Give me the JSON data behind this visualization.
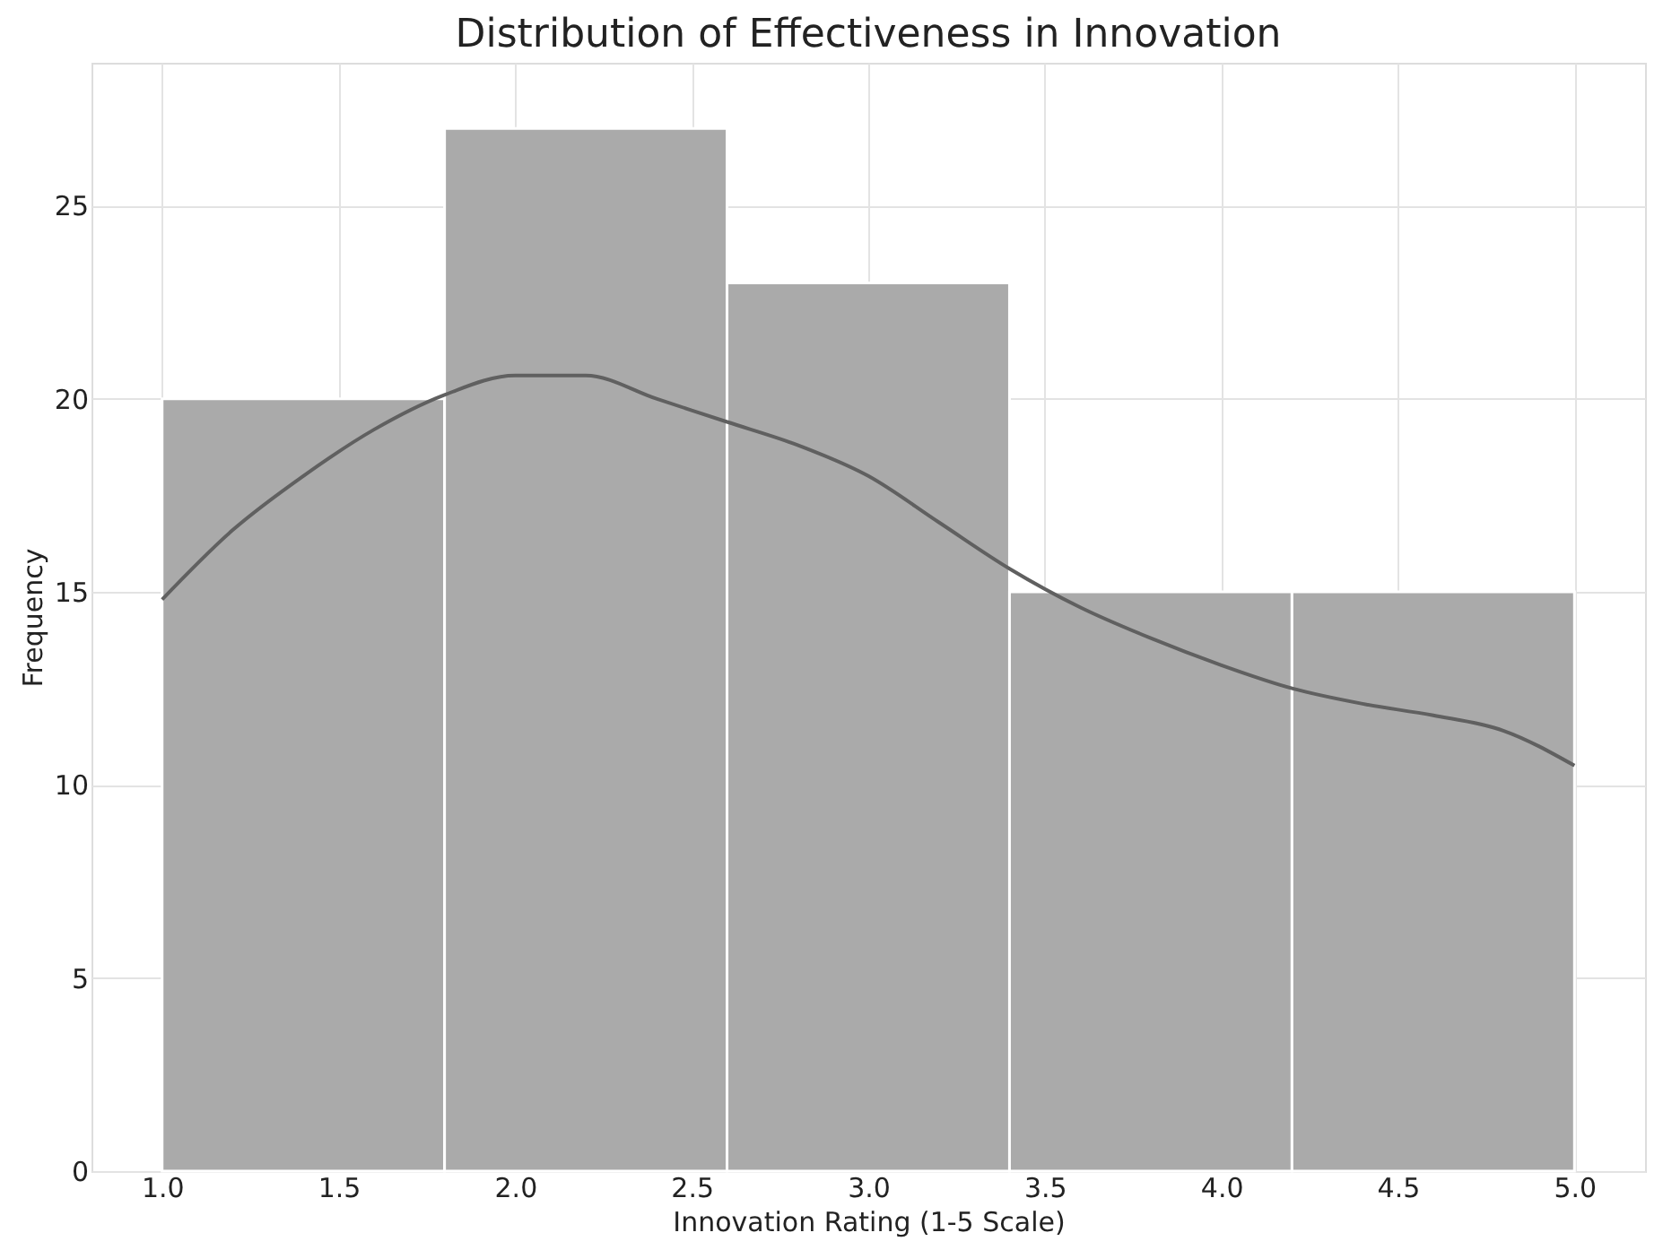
{
  "chart_data": {
    "type": "histogram",
    "title": "Distribution of Effectiveness in Innovation",
    "xlabel": "Innovation Rating (1-5 Scale)",
    "ylabel": "Frequency",
    "bins": [
      1.0,
      1.8,
      2.6,
      3.4,
      4.2,
      5.0
    ],
    "values": [
      20,
      27,
      23,
      15,
      15
    ],
    "color": "#aaaaaa",
    "series": [
      {
        "type": "line",
        "color": "#606060",
        "x": [
          1.0,
          1.2,
          1.4,
          1.6,
          1.8,
          2.0,
          2.2,
          2.4,
          2.6,
          2.8,
          3.0,
          3.2,
          3.4,
          3.6,
          3.8,
          4.0,
          4.2,
          4.4,
          4.6,
          4.8,
          5.0
        ],
        "values": [
          14.8,
          16.6,
          18.0,
          19.2,
          20.1,
          20.6,
          20.6,
          20.0,
          19.4,
          18.8,
          18.0,
          16.8,
          15.6,
          14.6,
          13.8,
          13.1,
          12.5,
          12.1,
          11.8,
          11.4,
          10.5
        ]
      }
    ],
    "xlim": [
      0.8,
      5.2
    ],
    "ylim": [
      0,
      28.7
    ],
    "xticks": [
      {
        "value": 1.0,
        "label": "1.0"
      },
      {
        "value": 1.5,
        "label": "1.5"
      },
      {
        "value": 2.0,
        "label": "2.0"
      },
      {
        "value": 2.5,
        "label": "2.5"
      },
      {
        "value": 3.0,
        "label": "3.0"
      },
      {
        "value": 3.5,
        "label": "3.5"
      },
      {
        "value": 4.0,
        "label": "4.0"
      },
      {
        "value": 4.5,
        "label": "4.5"
      },
      {
        "value": 5.0,
        "label": "5.0"
      }
    ],
    "yticks": [
      0,
      5,
      10,
      15,
      20,
      25
    ],
    "grid": true,
    "line_style": "solid"
  }
}
